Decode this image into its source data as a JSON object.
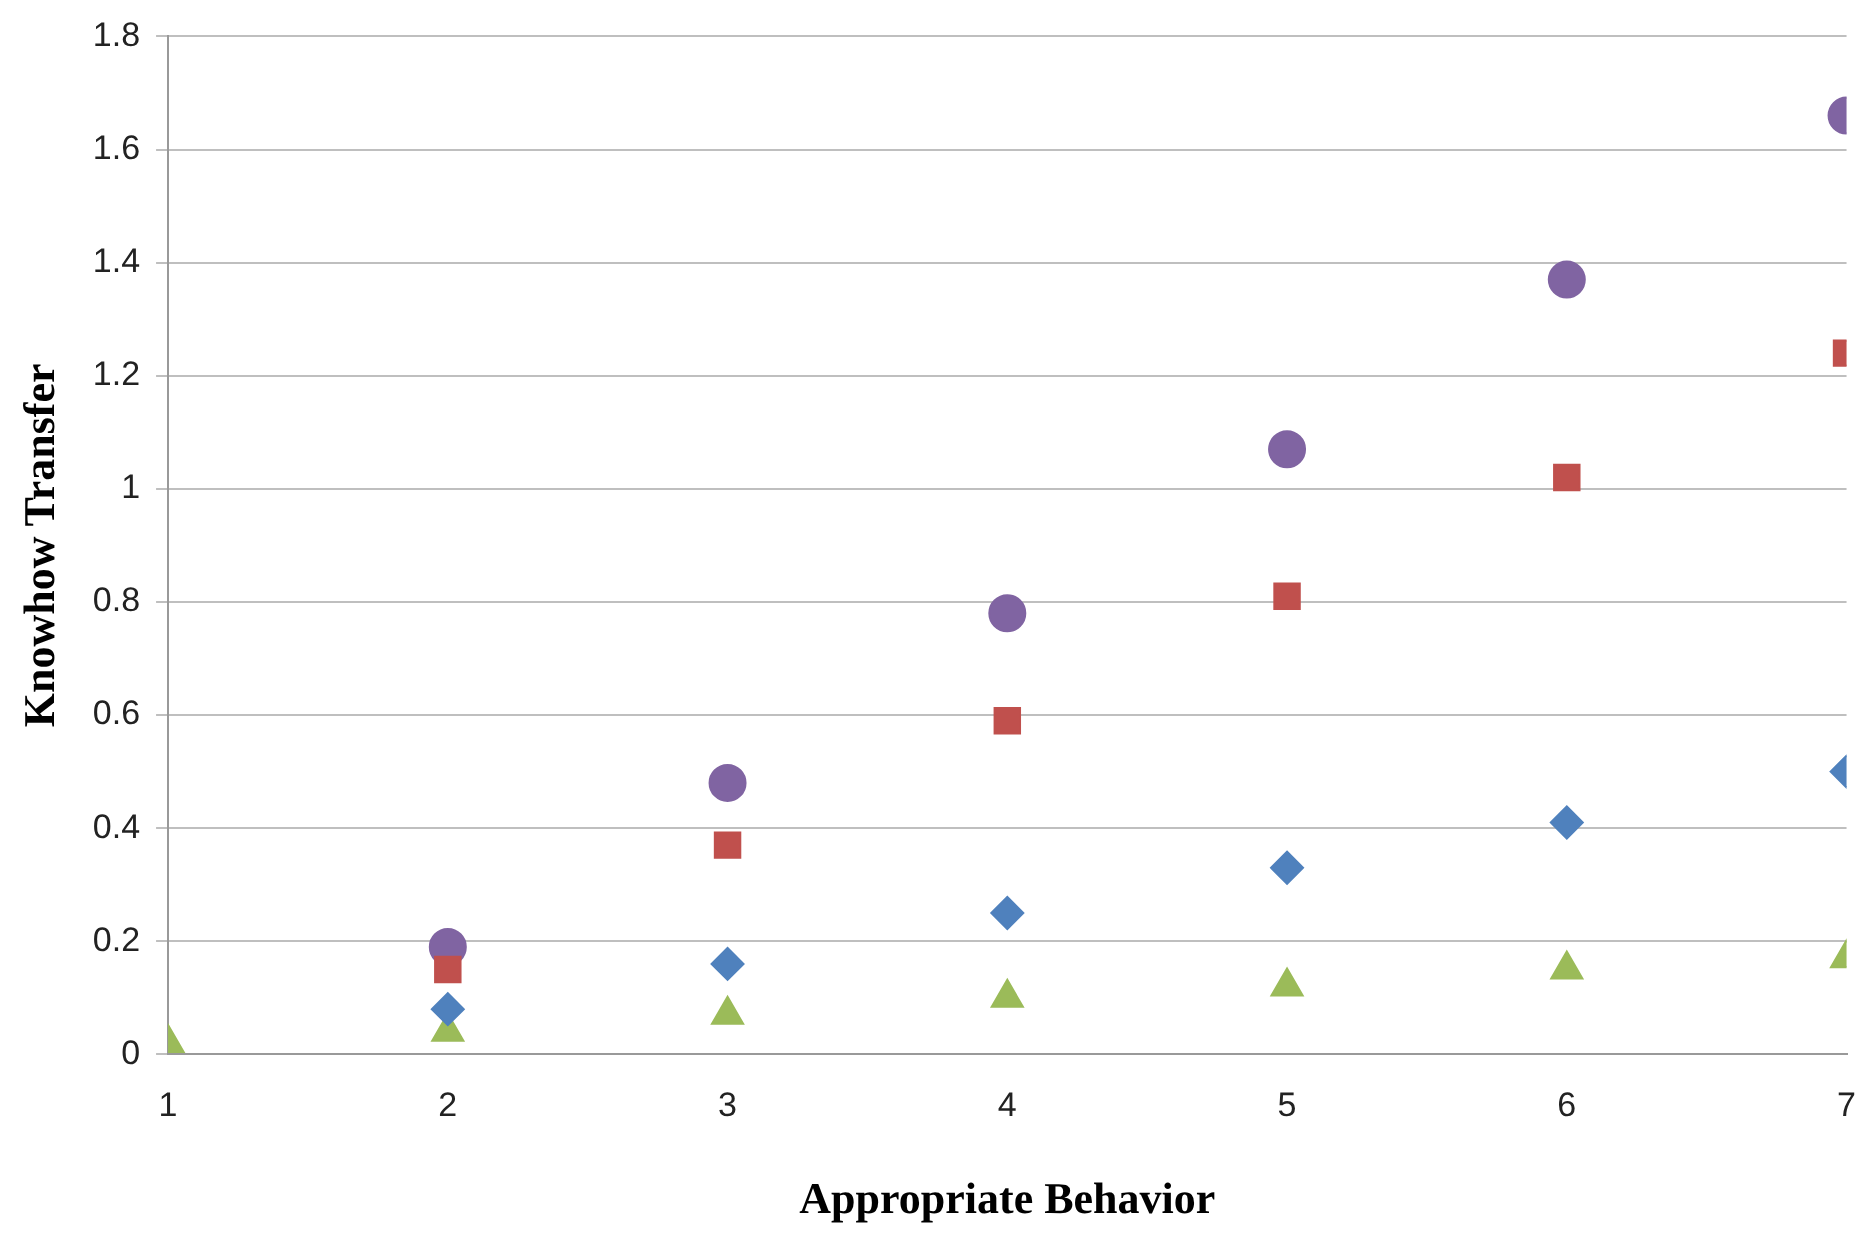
{
  "chart_data": {
    "type": "scatter",
    "xlabel": "Appropriate Behavior",
    "ylabel": "Knowhow Transfer",
    "xlim": [
      1,
      7
    ],
    "xticks": [
      1,
      2,
      3,
      4,
      5,
      6,
      7
    ],
    "ylim": [
      0,
      1.8
    ],
    "yticks": [
      0,
      0.2,
      0.4,
      0.6,
      0.8,
      1,
      1.2,
      1.4,
      1.6,
      1.8
    ],
    "grid": "y",
    "legend": false,
    "series": [
      {
        "color": "#4f81bd",
        "marker": "diamond",
        "x": [
          2,
          3,
          4,
          5,
          6,
          7
        ],
        "values": [
          0.08,
          0.16,
          0.25,
          0.33,
          0.41,
          0.5
        ]
      },
      {
        "color": "#c0504d",
        "marker": "square",
        "x": [
          2,
          3,
          4,
          5,
          6,
          7
        ],
        "values": [
          0.15,
          0.37,
          0.59,
          0.81,
          1.02,
          1.24
        ]
      },
      {
        "color": "#8064a2",
        "marker": "circle",
        "x": [
          2,
          3,
          4,
          5,
          6,
          7
        ],
        "values": [
          0.19,
          0.48,
          0.78,
          1.07,
          1.37,
          1.66
        ]
      },
      {
        "color": "#9bbb59",
        "marker": "triangle",
        "x": [
          1,
          2,
          3,
          4,
          5,
          6,
          7
        ],
        "values": [
          0.02,
          0.04,
          0.07,
          0.1,
          0.12,
          0.15,
          0.17
        ]
      }
    ]
  }
}
